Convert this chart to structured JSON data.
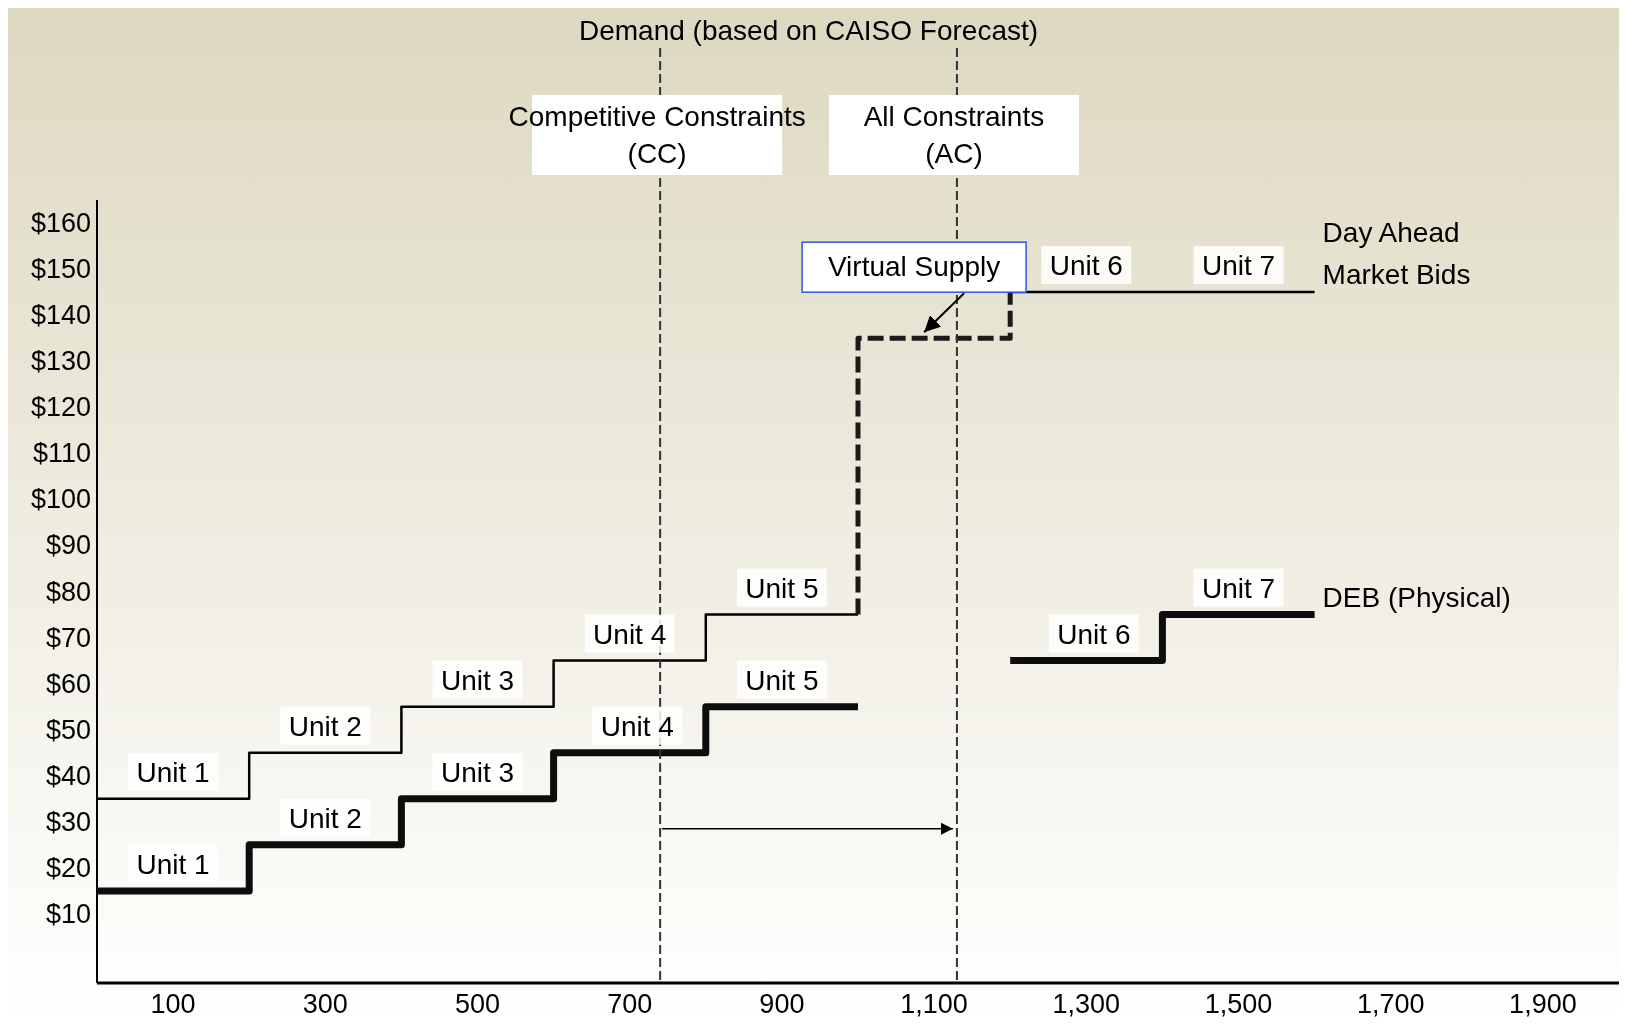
{
  "chart_data": {
    "type": "step",
    "legend": false,
    "grid": false,
    "xlim": [
      0,
      2000
    ],
    "ylim": [
      -5,
      165
    ],
    "xticks": [
      100,
      300,
      500,
      700,
      900,
      {
        "value": 1100,
        "label": "1,100"
      },
      {
        "value": 1300,
        "label": "1,300"
      },
      {
        "value": 1500,
        "label": "1,500"
      },
      {
        "value": 1700,
        "label": "1,700"
      },
      {
        "value": 1900,
        "label": "1,900"
      }
    ],
    "yticks": [
      {
        "value": 10,
        "label": "$10"
      },
      {
        "value": 20,
        "label": "$20"
      },
      {
        "value": 30,
        "label": "$30"
      },
      {
        "value": 40,
        "label": "$40"
      },
      {
        "value": 50,
        "label": "$50"
      },
      {
        "value": 60,
        "label": "$60"
      },
      {
        "value": 70,
        "label": "$70"
      },
      {
        "value": 80,
        "label": "$80"
      },
      {
        "value": 90,
        "label": "$90"
      },
      {
        "value": 100,
        "label": "$100"
      },
      {
        "value": 110,
        "label": "$110"
      },
      {
        "value": 120,
        "label": "$120"
      },
      {
        "value": 130,
        "label": "$130"
      },
      {
        "value": 140,
        "label": "$140"
      },
      {
        "value": 150,
        "label": "$150"
      },
      {
        "value": 160,
        "label": "$160"
      }
    ],
    "series": [
      {
        "name": "Day Ahead Market Bids",
        "color": "#000000",
        "x": [
          0,
          200,
          400,
          600,
          800,
          1000,
          1100,
          1200,
          1600
        ],
        "values": [
          35,
          45,
          55,
          65,
          75,
          75,
          null,
          145,
          145
        ]
      },
      {
        "name": "DEB (Physical)",
        "color": "#0d0d0d",
        "x": [
          0,
          200,
          400,
          600,
          800,
          1000,
          1100,
          1200,
          1400,
          1600
        ],
        "values": [
          15,
          25,
          35,
          45,
          55,
          55,
          null,
          65,
          75,
          75
        ]
      },
      {
        "name": "Virtual Supply",
        "type": "line",
        "line_style": "dashed",
        "color": "#1a1a1a",
        "x": [
          1000,
          1000,
          1200,
          1200
        ],
        "values": [
          75,
          135,
          135,
          145
        ]
      }
    ],
    "ref_lines": [
      {
        "axis": "x",
        "value": 740,
        "label": "Competitive Constraints (CC)",
        "line_style": "dashed",
        "color": "#333333"
      },
      {
        "axis": "x",
        "value": 1130,
        "label": "All Constraints (AC)",
        "line_style": "dashed",
        "color": "#333333"
      }
    ],
    "annotations": [
      "Demand (based on CAISO Forecast)",
      {
        "text": "Unit 1",
        "x": 100,
        "y": 35
      },
      {
        "text": "Unit 2",
        "x": 300,
        "y": 45
      },
      {
        "text": "Unit 3",
        "x": 500,
        "y": 55
      },
      {
        "text": "Unit 4",
        "x": 700,
        "y": 65
      },
      {
        "text": "Unit 5",
        "x": 900,
        "y": 75
      },
      {
        "text": "Unit 6",
        "x": 1300,
        "y": 145
      },
      {
        "text": "Unit 7",
        "x": 1500,
        "y": 145
      },
      {
        "text": "Unit 1",
        "x": 100,
        "y": 15
      },
      {
        "text": "Unit 2",
        "x": 300,
        "y": 25
      },
      {
        "text": "Unit 3",
        "x": 500,
        "y": 35
      },
      {
        "text": "Unit 4",
        "x": 710,
        "y": 45
      },
      {
        "text": "Unit 5",
        "x": 900,
        "y": 55
      },
      {
        "text": "Unit 6",
        "x": 1310,
        "y": 65
      },
      {
        "text": "Unit 7",
        "x": 1500,
        "y": 75
      }
    ]
  }
}
